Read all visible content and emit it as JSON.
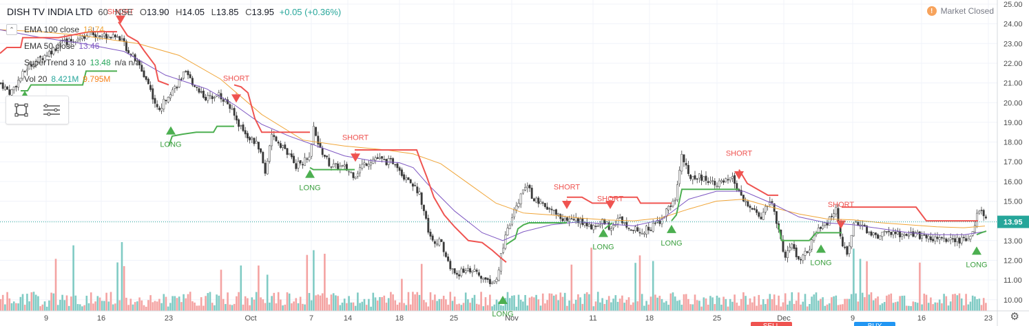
{
  "header": {
    "symbol": "DISH TV INDIA LTD",
    "interval": "60",
    "exchange": "NSE",
    "open_label": "O",
    "open": "13.90",
    "high_label": "H",
    "high": "14.05",
    "low_label": "L",
    "low": "13.85",
    "close_label": "C",
    "close": "13.95",
    "change": "+0.05 (+0.36%)"
  },
  "studies": [
    {
      "name": "EMA 100 close",
      "value": "13.74",
      "color": "#f0a436"
    },
    {
      "name": "EMA 50 close",
      "value": "13.46",
      "color": "#7e57c2"
    },
    {
      "name": "SuperTrend 3 10",
      "value": "13.48",
      "extra": "n/a  n/a",
      "color": "#26a65a"
    },
    {
      "name": "Vol 20",
      "value": "8.421M",
      "value2": "9.795M",
      "color": "#26a69a",
      "color2": "#f57f17"
    }
  ],
  "market_status": {
    "label": "Market Closed",
    "icon": "!"
  },
  "price_label": "13.95",
  "colors": {
    "up": "#26a69a",
    "down": "#ef5350",
    "st_long": "#4caf50",
    "st_short": "#ef5350",
    "ema100": "#f0a436",
    "ema50": "#7e57c2",
    "vol_up": "#80cbc4",
    "vol_down": "#f4a3a2"
  },
  "chart_data": {
    "type": "candlestick",
    "y_ticks": [
      "25.00",
      "24.00",
      "23.00",
      "22.00",
      "21.00",
      "20.00",
      "19.00",
      "18.00",
      "17.00",
      "16.00",
      "15.00",
      "14.00",
      "13.00",
      "12.00",
      "11.00",
      "10.00"
    ],
    "ylim": [
      9.8,
      25.2
    ],
    "x_ticks": [
      "9",
      "16",
      "23",
      "Oct",
      "7",
      "14",
      "18",
      "25",
      "Nov",
      "11",
      "18",
      "25",
      "Dec",
      "9",
      "16",
      "23"
    ],
    "x_label_hints": {
      "bottom_left": "SELL",
      "bottom_right": "BUY"
    },
    "anchors": [
      [
        0,
        21
      ],
      [
        15,
        20.5
      ],
      [
        40,
        21.8
      ],
      [
        90,
        23
      ],
      [
        130,
        23.5
      ],
      [
        175,
        23.3
      ],
      [
        183,
        22.8
      ],
      [
        200,
        22
      ],
      [
        215,
        21
      ],
      [
        230,
        19.5
      ],
      [
        245,
        20.5
      ],
      [
        255,
        20.8
      ],
      [
        268,
        21.5
      ],
      [
        285,
        20.8
      ],
      [
        300,
        20.2
      ],
      [
        315,
        20.5
      ],
      [
        330,
        20
      ],
      [
        345,
        19
      ],
      [
        360,
        18.3
      ],
      [
        375,
        17.8
      ],
      [
        385,
        16.5
      ],
      [
        395,
        18.3
      ],
      [
        410,
        17.8
      ],
      [
        430,
        16.8
      ],
      [
        450,
        17.2
      ],
      [
        455,
        18.7
      ],
      [
        462,
        17.8
      ],
      [
        480,
        16.8
      ],
      [
        500,
        16.7
      ],
      [
        515,
        16.3
      ],
      [
        525,
        16.8
      ],
      [
        545,
        17.2
      ],
      [
        560,
        17
      ],
      [
        575,
        17
      ],
      [
        585,
        16.3
      ],
      [
        595,
        16.1
      ],
      [
        610,
        15.3
      ],
      [
        625,
        13.1
      ],
      [
        640,
        12.9
      ],
      [
        655,
        11.5
      ],
      [
        665,
        11.3
      ],
      [
        680,
        11.6
      ],
      [
        700,
        11.1
      ],
      [
        720,
        10.8
      ],
      [
        730,
        12.7
      ],
      [
        740,
        13.8
      ],
      [
        755,
        15.2
      ],
      [
        765,
        15.8
      ],
      [
        775,
        15.1
      ],
      [
        795,
        14.6
      ],
      [
        810,
        14.3
      ],
      [
        822,
        14
      ],
      [
        835,
        14.1
      ],
      [
        850,
        13.8
      ],
      [
        865,
        13.7
      ],
      [
        875,
        14
      ],
      [
        885,
        13.7
      ],
      [
        900,
        14.1
      ],
      [
        915,
        13.7
      ],
      [
        930,
        13.4
      ],
      [
        940,
        13.6
      ],
      [
        955,
        13.9
      ],
      [
        970,
        14.6
      ],
      [
        980,
        15.1
      ],
      [
        990,
        17.4
      ],
      [
        1000,
        16.2
      ],
      [
        1010,
        16.3
      ],
      [
        1025,
        16.1
      ],
      [
        1045,
        15.9
      ],
      [
        1065,
        16.1
      ],
      [
        1075,
        15.2
      ],
      [
        1090,
        14.6
      ],
      [
        1105,
        14.2
      ],
      [
        1120,
        15.1
      ],
      [
        1130,
        13.5
      ],
      [
        1140,
        12.2
      ],
      [
        1150,
        12.8
      ],
      [
        1160,
        11.9
      ],
      [
        1175,
        12.6
      ],
      [
        1185,
        13.4
      ],
      [
        1195,
        13.7
      ],
      [
        1205,
        14.1
      ],
      [
        1215,
        14.6
      ],
      [
        1222,
        12.6
      ],
      [
        1232,
        12.4
      ],
      [
        1240,
        14.1
      ],
      [
        1255,
        13.6
      ],
      [
        1270,
        13.2
      ],
      [
        1285,
        13.4
      ],
      [
        1300,
        13.3
      ],
      [
        1320,
        13.4
      ],
      [
        1340,
        13.2
      ],
      [
        1360,
        13.1
      ],
      [
        1380,
        13
      ],
      [
        1400,
        13
      ],
      [
        1410,
        13.1
      ],
      [
        1418,
        14.3
      ],
      [
        1425,
        14.5
      ],
      [
        1432,
        14
      ]
    ],
    "ema100": [
      [
        0,
        23.7
      ],
      [
        60,
        23.6
      ],
      [
        120,
        23.4
      ],
      [
        200,
        23.0
      ],
      [
        260,
        22.4
      ],
      [
        320,
        21.2
      ],
      [
        380,
        19.4
      ],
      [
        440,
        18.1
      ],
      [
        500,
        17.8
      ],
      [
        560,
        17.6
      ],
      [
        600,
        17.4
      ],
      [
        640,
        16.9
      ],
      [
        680,
        15.9
      ],
      [
        720,
        14.9
      ],
      [
        760,
        14.4
      ],
      [
        800,
        14.3
      ],
      [
        840,
        14.15
      ],
      [
        880,
        14.05
      ],
      [
        920,
        14.0
      ],
      [
        960,
        14.15
      ],
      [
        1000,
        14.6
      ],
      [
        1040,
        15.0
      ],
      [
        1080,
        15.1
      ],
      [
        1120,
        14.7
      ],
      [
        1160,
        14.35
      ],
      [
        1200,
        14.1
      ],
      [
        1240,
        14.05
      ],
      [
        1280,
        13.9
      ],
      [
        1320,
        13.8
      ],
      [
        1360,
        13.7
      ],
      [
        1400,
        13.65
      ],
      [
        1430,
        13.74
      ]
    ],
    "ema50": [
      [
        0,
        23.7
      ],
      [
        60,
        23.3
      ],
      [
        120,
        23.0
      ],
      [
        180,
        22.6
      ],
      [
        240,
        21.4
      ],
      [
        300,
        20.7
      ],
      [
        340,
        19.9
      ],
      [
        380,
        18.9
      ],
      [
        420,
        18.3
      ],
      [
        460,
        17.8
      ],
      [
        500,
        17.3
      ],
      [
        540,
        17.05
      ],
      [
        580,
        16.95
      ],
      [
        600,
        16.7
      ],
      [
        620,
        15.9
      ],
      [
        660,
        14.5
      ],
      [
        700,
        13.4
      ],
      [
        730,
        13.0
      ],
      [
        760,
        13.45
      ],
      [
        800,
        13.8
      ],
      [
        840,
        13.95
      ],
      [
        880,
        13.85
      ],
      [
        920,
        13.75
      ],
      [
        960,
        14.05
      ],
      [
        1000,
        15.1
      ],
      [
        1040,
        15.5
      ],
      [
        1080,
        15.5
      ],
      [
        1120,
        14.9
      ],
      [
        1160,
        14.2
      ],
      [
        1200,
        13.9
      ],
      [
        1240,
        13.8
      ],
      [
        1280,
        13.6
      ],
      [
        1320,
        13.4
      ],
      [
        1360,
        13.3
      ],
      [
        1400,
        13.3
      ],
      [
        1430,
        13.46
      ]
    ],
    "supertrend": [
      {
        "dir": "short",
        "pts": [
          [
            0,
            22.5
          ],
          [
            10,
            22.8
          ],
          [
            30,
            22.8
          ],
          [
            33,
            23.3
          ],
          [
            85,
            23.3
          ],
          [
            130,
            23.6
          ],
          [
            170,
            23.6
          ]
        ]
      },
      {
        "dir": "long",
        "pts": [
          [
            30,
            20.6
          ],
          [
            40,
            20.6
          ],
          [
            45,
            20.9
          ],
          [
            120,
            20.9
          ],
          [
            125,
            21.6
          ],
          [
            170,
            21.6
          ]
        ]
      },
      {
        "dir": "short",
        "pts": [
          [
            172,
            24.1
          ],
          [
            185,
            23.4
          ],
          [
            200,
            23.1
          ],
          [
            210,
            22.6
          ],
          [
            225,
            21.9
          ],
          [
            230,
            21.1
          ],
          [
            245,
            20.9
          ]
        ]
      },
      {
        "dir": "long",
        "pts": [
          [
            245,
            17.8
          ],
          [
            250,
            18.3
          ],
          [
            265,
            18.4
          ],
          [
            285,
            18.5
          ],
          [
            290,
            18.5
          ],
          [
            310,
            18.5
          ],
          [
            315,
            18.8
          ],
          [
            340,
            18.8
          ]
        ]
      },
      {
        "dir": "short",
        "pts": [
          [
            340,
            20.9
          ],
          [
            350,
            20.8
          ],
          [
            360,
            20.5
          ],
          [
            370,
            19.2
          ],
          [
            380,
            18.5
          ],
          [
            450,
            18.5
          ]
        ]
      },
      {
        "dir": "long",
        "pts": [
          [
            450,
            16.7
          ],
          [
            455,
            16.6
          ],
          [
            515,
            16.6
          ]
        ]
      },
      {
        "dir": "short",
        "pts": [
          [
            515,
            17.6
          ],
          [
            605,
            17.6
          ],
          [
            610,
            17.1
          ],
          [
            620,
            16.2
          ],
          [
            630,
            15.2
          ],
          [
            645,
            14.3
          ],
          [
            660,
            13.7
          ],
          [
            680,
            13.0
          ],
          [
            700,
            12.9
          ],
          [
            715,
            12.5
          ],
          [
            728,
            12.1
          ],
          [
            735,
            11.9
          ]
        ]
      },
      {
        "dir": "long",
        "pts": [
          [
            735,
            12.8
          ],
          [
            748,
            13.1
          ],
          [
            752,
            13.6
          ],
          [
            760,
            13.8
          ],
          [
            768,
            13.9
          ],
          [
            823,
            13.9
          ]
        ]
      },
      {
        "dir": "short",
        "pts": [
          [
            823,
            15.2
          ],
          [
            845,
            15.2
          ],
          [
            860,
            14.9
          ],
          [
            882,
            14.9
          ]
        ]
      },
      {
        "dir": "long",
        "pts": [
          [
            878,
            13.6
          ],
          [
            885,
            13.8
          ],
          [
            889,
            13.9
          ]
        ]
      },
      {
        "dir": "short",
        "pts": [
          [
            885,
            15.2
          ],
          [
            925,
            15.2
          ],
          [
            930,
            14.9
          ],
          [
            975,
            14.9
          ]
        ]
      },
      {
        "dir": "long",
        "pts": [
          [
            975,
            14.0
          ],
          [
            982,
            14.3
          ],
          [
            990,
            15.6
          ],
          [
            1073,
            15.6
          ]
        ]
      },
      {
        "dir": "short",
        "pts": [
          [
            1073,
            16.6
          ],
          [
            1085,
            15.9
          ],
          [
            1095,
            15.7
          ],
          [
            1115,
            15.3
          ],
          [
            1130,
            15.3
          ]
        ]
      },
      {
        "dir": "long",
        "pts": [
          [
            1130,
            13.8
          ],
          [
            1135,
            13.0
          ],
          [
            1175,
            13.0
          ],
          [
            1185,
            13.4
          ],
          [
            1222,
            13.4
          ]
        ]
      },
      {
        "dir": "short",
        "pts": [
          [
            1222,
            14.7
          ],
          [
            1330,
            14.7
          ],
          [
            1345,
            14.0
          ],
          [
            1420,
            14.0
          ]
        ]
      },
      {
        "dir": "long",
        "pts": [
          [
            1418,
            13.3
          ],
          [
            1425,
            13.4
          ],
          [
            1432,
            13.48
          ]
        ]
      }
    ],
    "signals": [
      {
        "type": "short",
        "label": "SHORT",
        "x": 175,
        "price": 24.0,
        "label_price": 24.5
      },
      {
        "type": "long",
        "label": "LONG",
        "x": 36,
        "price": 20.6
      },
      {
        "type": "long",
        "label": "LONG",
        "x": 248,
        "price": 18.8
      },
      {
        "type": "short",
        "label": "SHORT",
        "x": 343,
        "price": 20.0,
        "label_price": 21.1
      },
      {
        "type": "short",
        "label": "SHORT",
        "x": 516,
        "price": 17.0,
        "label_price": 18.1
      },
      {
        "type": "long",
        "label": "LONG",
        "x": 450,
        "price": 16.6
      },
      {
        "type": "long",
        "label": "LONG",
        "x": 730,
        "price": 10.2
      },
      {
        "type": "short",
        "label": "SHORT",
        "x": 823,
        "price": 14.6,
        "label_price": 15.6
      },
      {
        "type": "short",
        "label": "SHORT",
        "x": 886,
        "price": 14.6,
        "label_price": 15.0
      },
      {
        "type": "long",
        "label": "LONG",
        "x": 876,
        "price": 13.6
      },
      {
        "type": "long",
        "label": "LONG",
        "x": 975,
        "price": 13.8
      },
      {
        "type": "short",
        "label": "SHORT",
        "x": 1073,
        "price": 16.1,
        "label_price": 17.3
      },
      {
        "type": "long",
        "label": "LONG",
        "x": 1192,
        "price": 12.8
      },
      {
        "type": "short",
        "label": "SHORT",
        "x": 1221,
        "price": 13.6,
        "label_price": 14.7
      },
      {
        "type": "long",
        "label": "LONG",
        "x": 1418,
        "price": 12.7
      }
    ]
  }
}
